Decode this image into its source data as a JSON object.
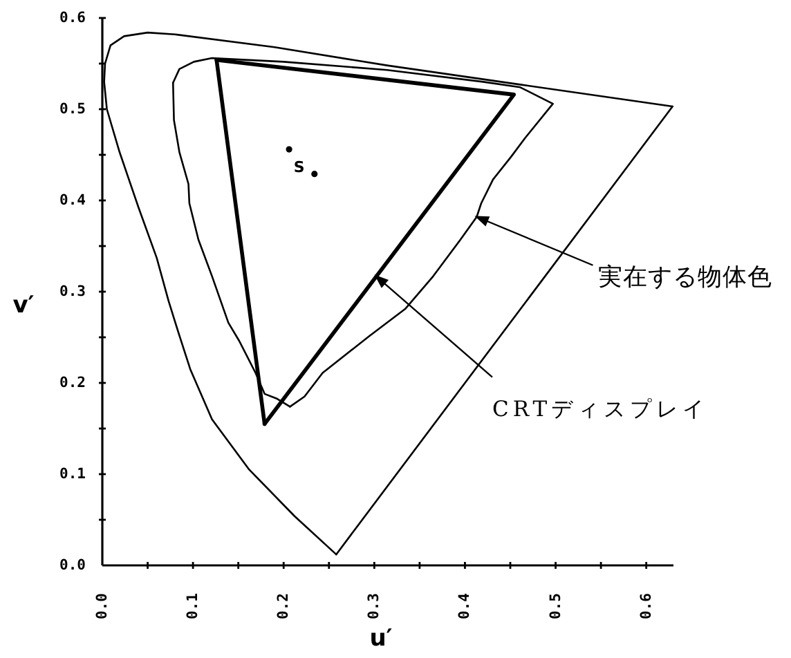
{
  "chart_data": {
    "type": "line",
    "xlabel": "u′",
    "ylabel": "v′",
    "xlim": [
      0,
      0.63
    ],
    "ylim": [
      0,
      0.6
    ],
    "xticks": [
      {
        "value": 0,
        "label": "0.0"
      },
      {
        "value": 0.05,
        "label": null
      },
      0.1,
      {
        "value": 0.15,
        "label": null
      },
      0.2,
      {
        "value": 0.25,
        "label": null
      },
      0.3,
      {
        "value": 0.35,
        "label": null
      },
      0.4,
      {
        "value": 0.45,
        "label": null
      },
      0.5,
      {
        "value": 0.55,
        "label": null
      },
      0.6
    ],
    "yticks": [
      {
        "value": 0,
        "label": "0.0"
      },
      {
        "value": 0.05,
        "label": null
      },
      0.1,
      {
        "value": 0.15,
        "label": null
      },
      0.2,
      {
        "value": 0.25,
        "label": null
      },
      0.3,
      {
        "value": 0.35,
        "label": null
      },
      0.4,
      {
        "value": 0.45,
        "label": null
      },
      0.5,
      {
        "value": 0.55,
        "label": null
      },
      0.6
    ],
    "grid": false,
    "series": [
      {
        "color": "#000000",
        "x": [
          0.258,
          0.212,
          0.162,
          0.121,
          0.097,
          0.084,
          0.073,
          0.06,
          0.04,
          0.019,
          0.005,
          0.002,
          0.003,
          0.009,
          0.024,
          0.05,
          0.08,
          0.19,
          0.314,
          0.461,
          0.629
        ],
        "values": [
          0.012,
          0.054,
          0.105,
          0.16,
          0.215,
          0.255,
          0.29,
          0.337,
          0.392,
          0.453,
          0.5,
          0.53,
          0.55,
          0.57,
          0.58,
          0.584,
          0.582,
          0.568,
          0.548,
          0.527,
          0.503
        ]
      },
      {
        "color": "#000000",
        "x": [
          0.629,
          0.258
        ],
        "values": [
          0.503,
          0.012
        ]
      },
      {
        "color": "#000000",
        "x": [
          0.078,
          0.085,
          0.101,
          0.121,
          0.2,
          0.314,
          0.42,
          0.461,
          0.497,
          0.466,
          0.451,
          0.431,
          0.418,
          0.413,
          0.395,
          0.365,
          0.334,
          0.294,
          0.243,
          0.223,
          0.207
        ],
        "values": [
          0.529,
          0.544,
          0.552,
          0.556,
          0.552,
          0.543,
          0.53,
          0.524,
          0.506,
          0.468,
          0.448,
          0.423,
          0.397,
          0.382,
          0.357,
          0.317,
          0.281,
          0.251,
          0.211,
          0.185,
          0.174
        ]
      },
      {
        "color": "#000000",
        "x": [
          0.207,
          0.192,
          0.179,
          0.169,
          0.151,
          0.139,
          0.121,
          0.106,
          0.096,
          0.095,
          0.085,
          0.079,
          0.078
        ],
        "values": [
          0.174,
          0.183,
          0.188,
          0.211,
          0.246,
          0.266,
          0.317,
          0.357,
          0.397,
          0.418,
          0.453,
          0.488,
          0.529
        ]
      },
      {
        "color": "#000000",
        "x": [
          0.126,
          0.454,
          0.179
        ],
        "values": [
          0.554,
          0.516,
          0.155
        ]
      },
      {
        "color": "#000000",
        "x": [
          0.179,
          0.126
        ],
        "values": [
          0.155,
          0.554
        ]
      },
      {
        "type": "scatter",
        "marker": "circle",
        "color": "#000000",
        "x": [
          0.206,
          0.234
        ],
        "values": [
          0.456,
          0.429
        ]
      }
    ],
    "annotations": [
      {
        "text": "実在する物体色",
        "x": 0.413,
        "y": 0.382
      },
      {
        "text": "CRTディスプレイ",
        "x": 0.302,
        "y": 0.317
      },
      {
        "text": "S",
        "x": 0.234,
        "y": 0.429
      }
    ]
  }
}
